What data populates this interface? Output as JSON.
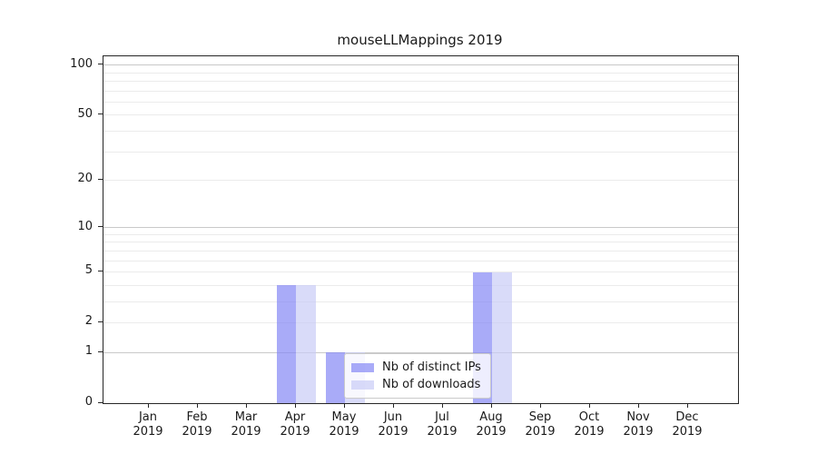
{
  "chart_data": {
    "type": "bar",
    "title": "mouseLLMappings 2019",
    "categories": [
      "Jan",
      "Feb",
      "Mar",
      "Apr",
      "May",
      "Jun",
      "Jul",
      "Aug",
      "Sep",
      "Oct",
      "Nov",
      "Dec"
    ],
    "category_year": "2019",
    "series": [
      {
        "name": "Nb of distinct IPs",
        "color": "#8487f5",
        "alpha": 0.7,
        "values": [
          0,
          0,
          0,
          4,
          1,
          0,
          0,
          5,
          0,
          0,
          0,
          0
        ]
      },
      {
        "name": "Nb of downloads",
        "color": "#c9ccf6",
        "alpha": 0.7,
        "values": [
          0,
          0,
          0,
          4,
          1,
          0,
          0,
          5,
          0,
          0,
          0,
          0
        ]
      }
    ],
    "xlabel": "",
    "ylabel": "",
    "y_axis": {
      "scale": "log1p",
      "ticks": [
        0,
        1,
        2,
        5,
        10,
        20,
        50,
        100
      ],
      "major_gridlines": [
        1,
        10,
        100
      ],
      "minor_gridlines": [
        2,
        3,
        4,
        5,
        6,
        7,
        8,
        9,
        20,
        30,
        40,
        50,
        60,
        70,
        80,
        90
      ],
      "ylim": [
        0,
        113
      ]
    },
    "legend": {
      "position": "inside-lower-center",
      "entries": [
        "Nb of distinct IPs",
        "Nb of downloads"
      ]
    },
    "colors": {
      "grid_major": "#c9c9c9",
      "grid_minor": "#ebebeb",
      "spine": "#262626",
      "text": "#1a1a1a",
      "legend_border": "#cbcbcb",
      "background": "#ffffff"
    }
  }
}
